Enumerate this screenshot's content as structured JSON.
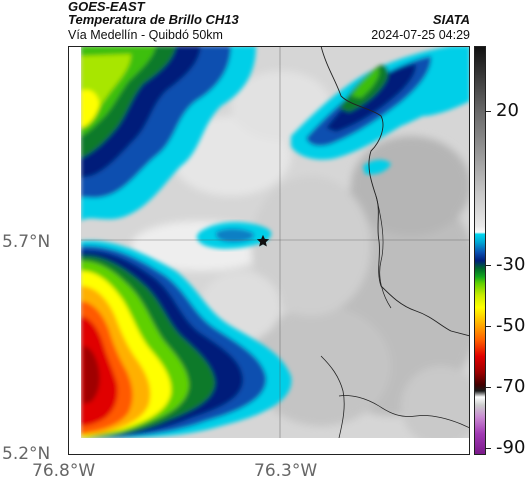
{
  "header": {
    "satellite": "GOES-EAST",
    "product": "Temperatura de Brillo CH13",
    "organization": "SIATA",
    "region": "Vía Medellín - Quibdó 50km",
    "timestamp": "2024-07-25 04:29"
  },
  "axes": {
    "lat_ticks": [
      "5.7°N",
      "5.2°N"
    ],
    "lon_ticks": [
      "76.8°W",
      "76.3°W"
    ]
  },
  "colorbar": {
    "labels": [
      "20",
      "-30",
      "-50",
      "-70",
      "-90"
    ],
    "units_scale": "brightness temperature °C",
    "colors": {
      "warm_gray": "#c8c8c8",
      "cyan": "#00d6ee",
      "blue": "#0a4fb0",
      "green": "#14a81e",
      "yellow": "#ffff00",
      "red": "#e00000",
      "magenta": "#a23ab4"
    }
  },
  "marker": {
    "icon": "star-icon"
  }
}
